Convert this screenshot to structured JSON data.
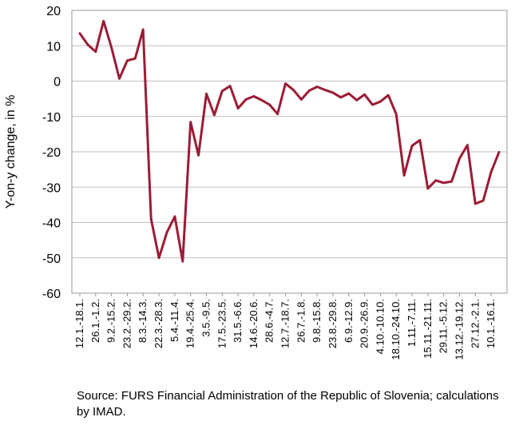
{
  "chart_data": {
    "type": "line",
    "title": "",
    "xlabel": "",
    "ylabel": "Y-on-y change, in %",
    "ylim": [
      -60,
      20
    ],
    "yticks": [
      20,
      10,
      0,
      -10,
      -20,
      -30,
      -40,
      -50,
      -60
    ],
    "grid": true,
    "legend": "none",
    "color": "#9b1c34",
    "tick_labels": [
      "12.1.-18.1.",
      "26.1.-1.2.",
      "9.2.-15.2.",
      "23.2.-29.2.",
      "8.3.-14.3.",
      "22.3.-28.3.",
      "5.4.-11.4.",
      "19.4.-25.4.",
      "3.5.-9.5.",
      "17.5.-23.5.",
      "31.5.-6.6.",
      "14.6.-20.6.",
      "28.6.-4.7.",
      "12.7.-18.7.",
      "26.7.-1.8.",
      "9.8.-15.8.",
      "23.8.-29.8.",
      "6.9.-12.9.",
      "20.9.-26.9.",
      "4.10.-10.10.",
      "18.10.-24.10.",
      "1.11.-7.11.",
      "15.11.-21.11.",
      "29.11.-5.12.",
      "13.12.-19.12.",
      "27.12.-2.1.",
      "10.1.-16.1."
    ],
    "series": [
      {
        "values": [
          13.5,
          10.3,
          8.3,
          17.0,
          9.5,
          0.7,
          5.8,
          6.4,
          14.6,
          -39.0,
          -50.0,
          -42.8,
          -38.3,
          -51.0,
          -11.6,
          -21.0,
          -3.6,
          -9.6,
          -2.8,
          -1.4,
          -7.7,
          -5.2,
          -4.3,
          -5.4,
          -6.7,
          -9.3,
          -0.7,
          -2.5,
          -5.2,
          -2.7,
          -1.6,
          -2.5,
          -3.3,
          -4.6,
          -3.5,
          -5.4,
          -3.8,
          -6.7,
          -5.8,
          -4.0,
          -9.3,
          -26.7,
          -18.3,
          -16.7,
          -30.4,
          -28.1,
          -28.8,
          -28.4,
          -21.9,
          -18.1,
          -34.7,
          -33.8,
          -25.7,
          -20.1
        ]
      }
    ]
  },
  "source_text": "Source: FURS Financial Administration of the Republic of Slovenia; calculations by IMAD."
}
